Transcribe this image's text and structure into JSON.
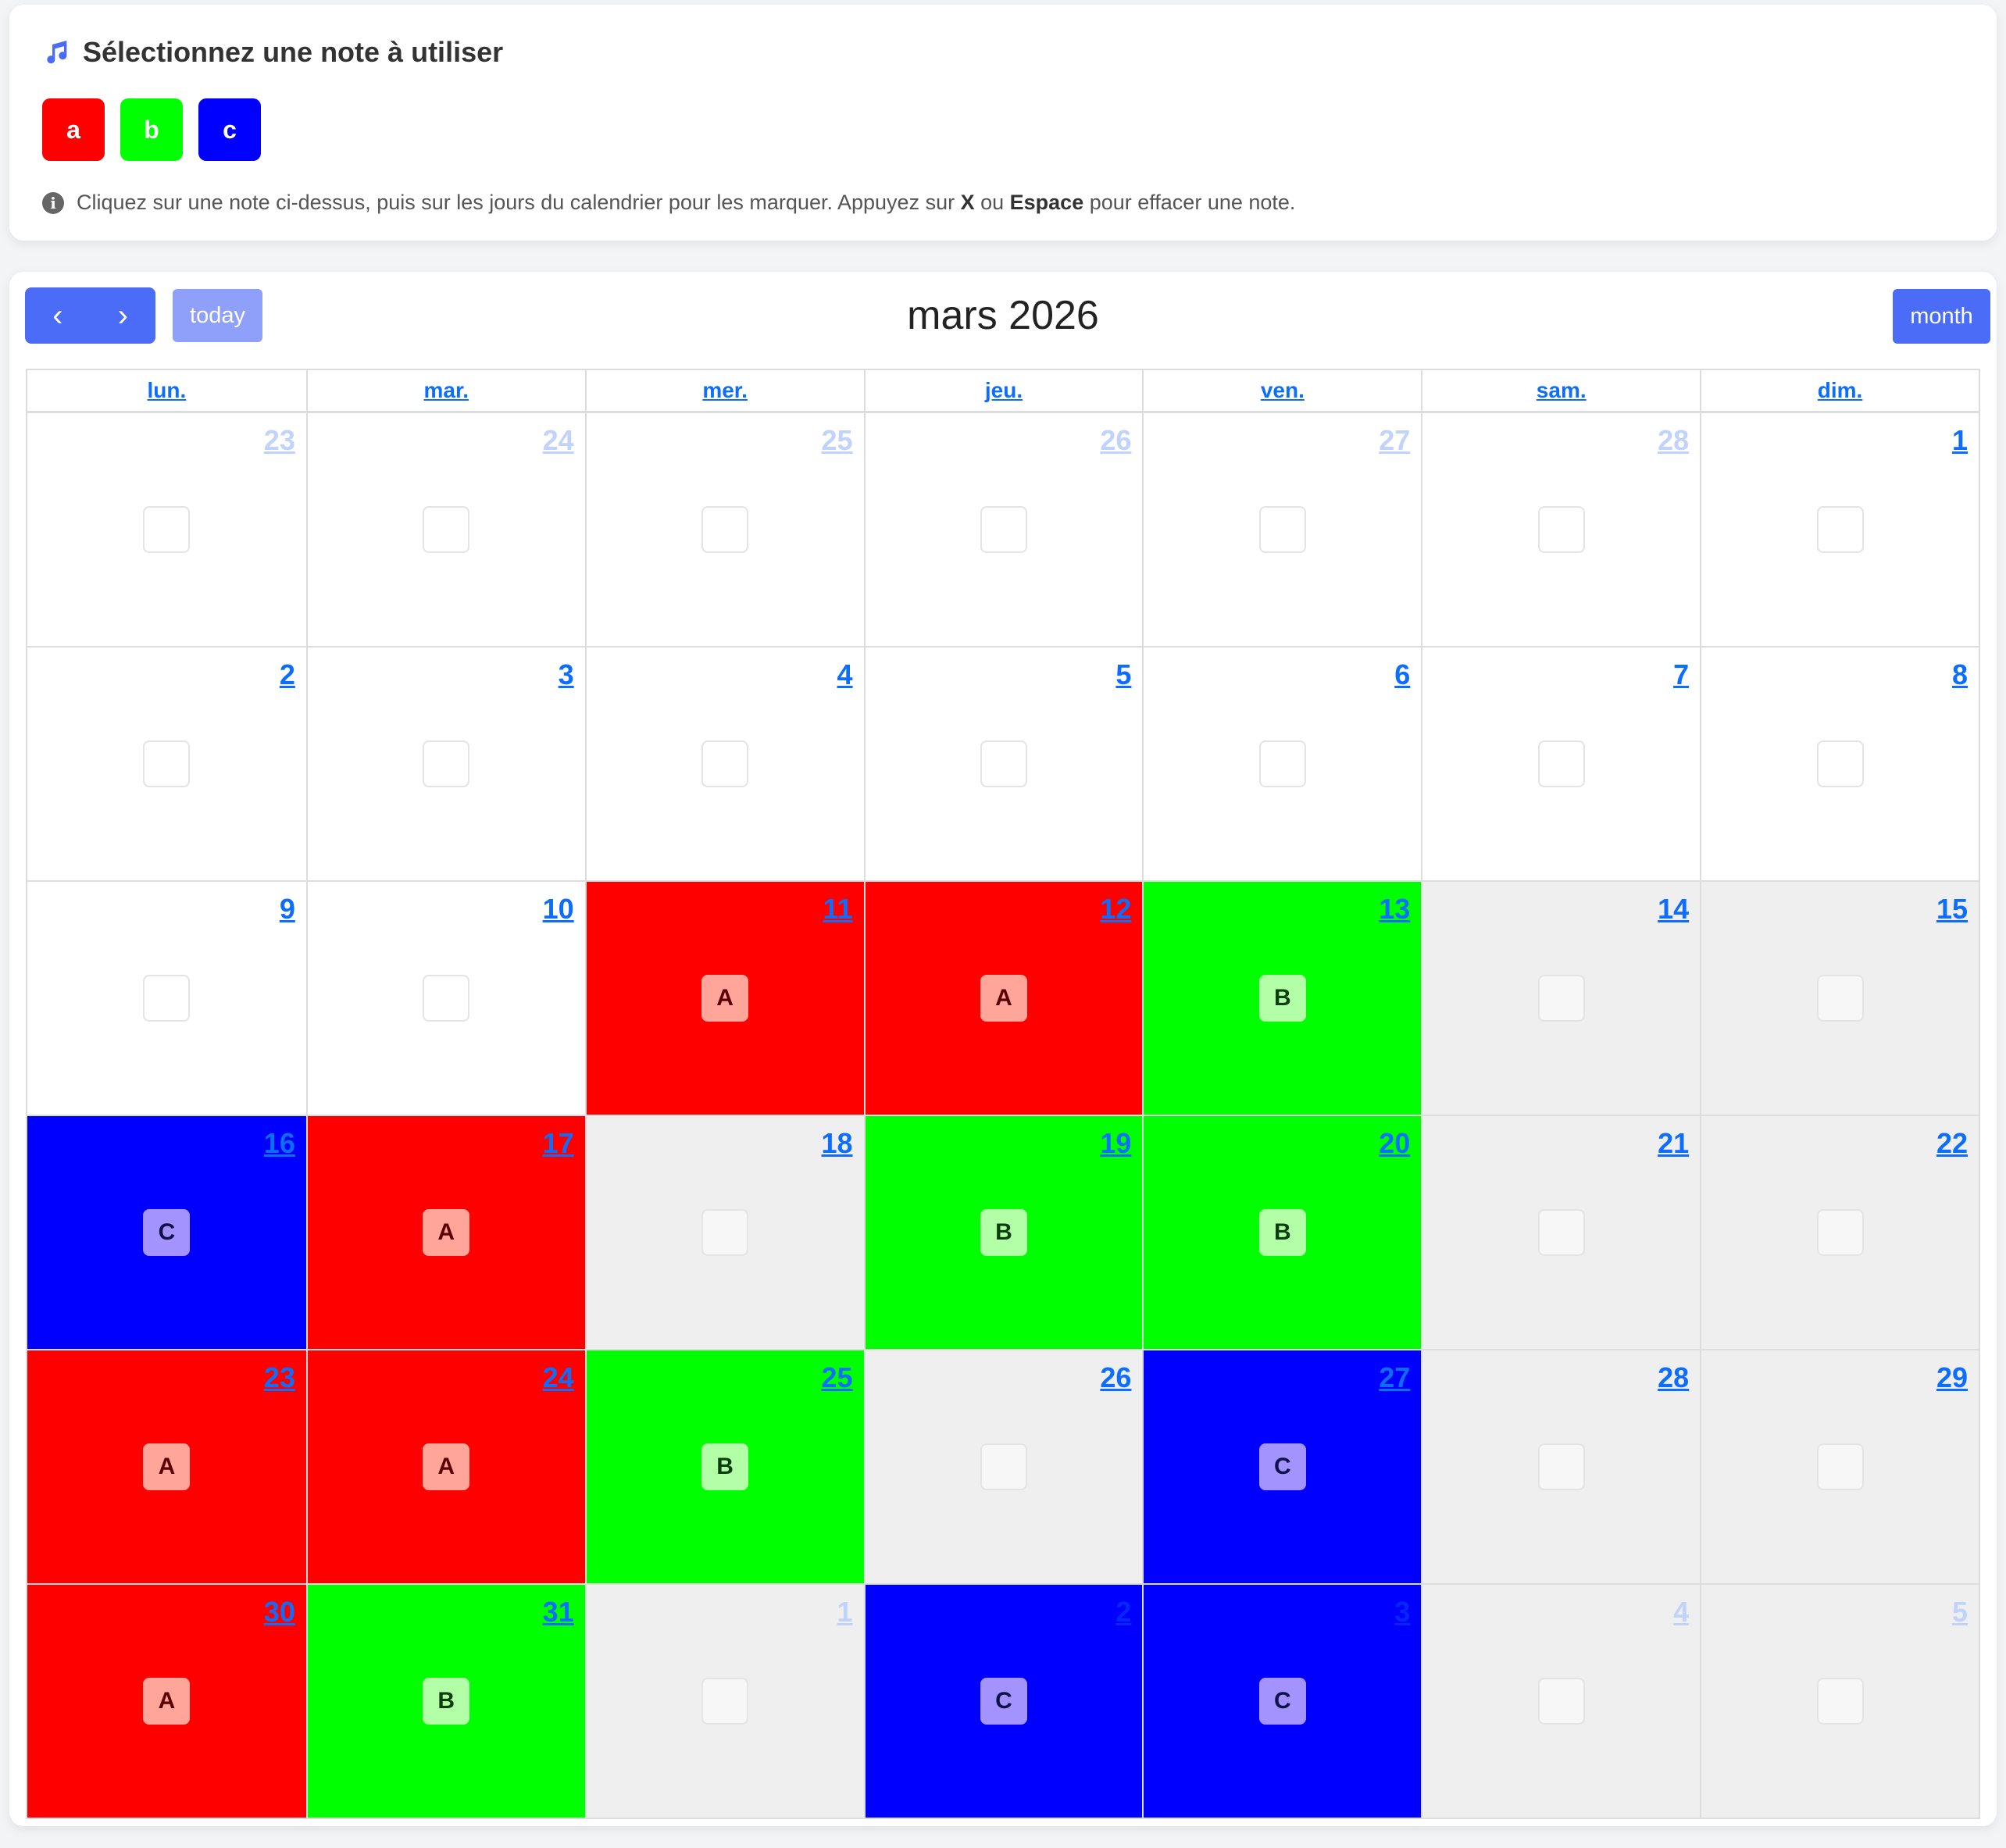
{
  "picker": {
    "title": "Sélectionnez une note à utiliser",
    "title_icon": "music-note-icon",
    "notes": [
      {
        "label": "a",
        "color": "#ff0000"
      },
      {
        "label": "b",
        "color": "#00ff00"
      },
      {
        "label": "c",
        "color": "#0000ff"
      }
    ],
    "info_icon": "info-circle-icon",
    "info_part1": "Cliquez sur une note ci-dessus, puis sur les jours du calendrier pour les marquer. Appuyez sur ",
    "info_key1": "X",
    "info_part2": " ou ",
    "info_key2": "Espace",
    "info_part3": " pour effacer une note."
  },
  "calendar": {
    "prev_icon": "chevron-left-icon",
    "next_icon": "chevron-right-icon",
    "prev": "‹",
    "next": "›",
    "today_label": "today",
    "title": "mars 2026",
    "view_label": "month",
    "weekdays": [
      "lun.",
      "mar.",
      "mer.",
      "jeu.",
      "ven.",
      "sam.",
      "dim."
    ],
    "note_styles": {
      "A": {
        "cell": "#ff0000",
        "badge": "#ffa59a",
        "text": "#5a0000"
      },
      "B": {
        "cell": "#00ff00",
        "badge": "#b3ffa8",
        "text": "#0c3d0c"
      },
      "C": {
        "cell": "#0000ff",
        "badge": "#a393ff",
        "text": "#10104a"
      }
    },
    "future_bg": "#efefef",
    "weeks": [
      [
        {
          "day": "23",
          "other": true
        },
        {
          "day": "24",
          "other": true
        },
        {
          "day": "25",
          "other": true
        },
        {
          "day": "26",
          "other": true
        },
        {
          "day": "27",
          "other": true
        },
        {
          "day": "28",
          "other": true
        },
        {
          "day": "1"
        }
      ],
      [
        {
          "day": "2"
        },
        {
          "day": "3"
        },
        {
          "day": "4"
        },
        {
          "day": "5"
        },
        {
          "day": "6"
        },
        {
          "day": "7"
        },
        {
          "day": "8"
        }
      ],
      [
        {
          "day": "9"
        },
        {
          "day": "10"
        },
        {
          "day": "11",
          "note": "A"
        },
        {
          "day": "12",
          "note": "A"
        },
        {
          "day": "13",
          "note": "B"
        },
        {
          "day": "14",
          "future": true
        },
        {
          "day": "15",
          "future": true
        }
      ],
      [
        {
          "day": "16",
          "note": "C"
        },
        {
          "day": "17",
          "note": "A"
        },
        {
          "day": "18",
          "future": true
        },
        {
          "day": "19",
          "note": "B"
        },
        {
          "day": "20",
          "note": "B"
        },
        {
          "day": "21",
          "future": true
        },
        {
          "day": "22",
          "future": true
        }
      ],
      [
        {
          "day": "23",
          "note": "A"
        },
        {
          "day": "24",
          "note": "A"
        },
        {
          "day": "25",
          "note": "B"
        },
        {
          "day": "26",
          "future": true
        },
        {
          "day": "27",
          "note": "C"
        },
        {
          "day": "28",
          "future": true
        },
        {
          "day": "29",
          "future": true
        }
      ],
      [
        {
          "day": "30",
          "note": "A"
        },
        {
          "day": "31",
          "note": "B"
        },
        {
          "day": "1",
          "other": true,
          "future": true
        },
        {
          "day": "2",
          "other": true,
          "note": "C"
        },
        {
          "day": "3",
          "other": true,
          "note": "C"
        },
        {
          "day": "4",
          "other": true,
          "future": true
        },
        {
          "day": "5",
          "other": true,
          "future": true
        }
      ]
    ]
  }
}
